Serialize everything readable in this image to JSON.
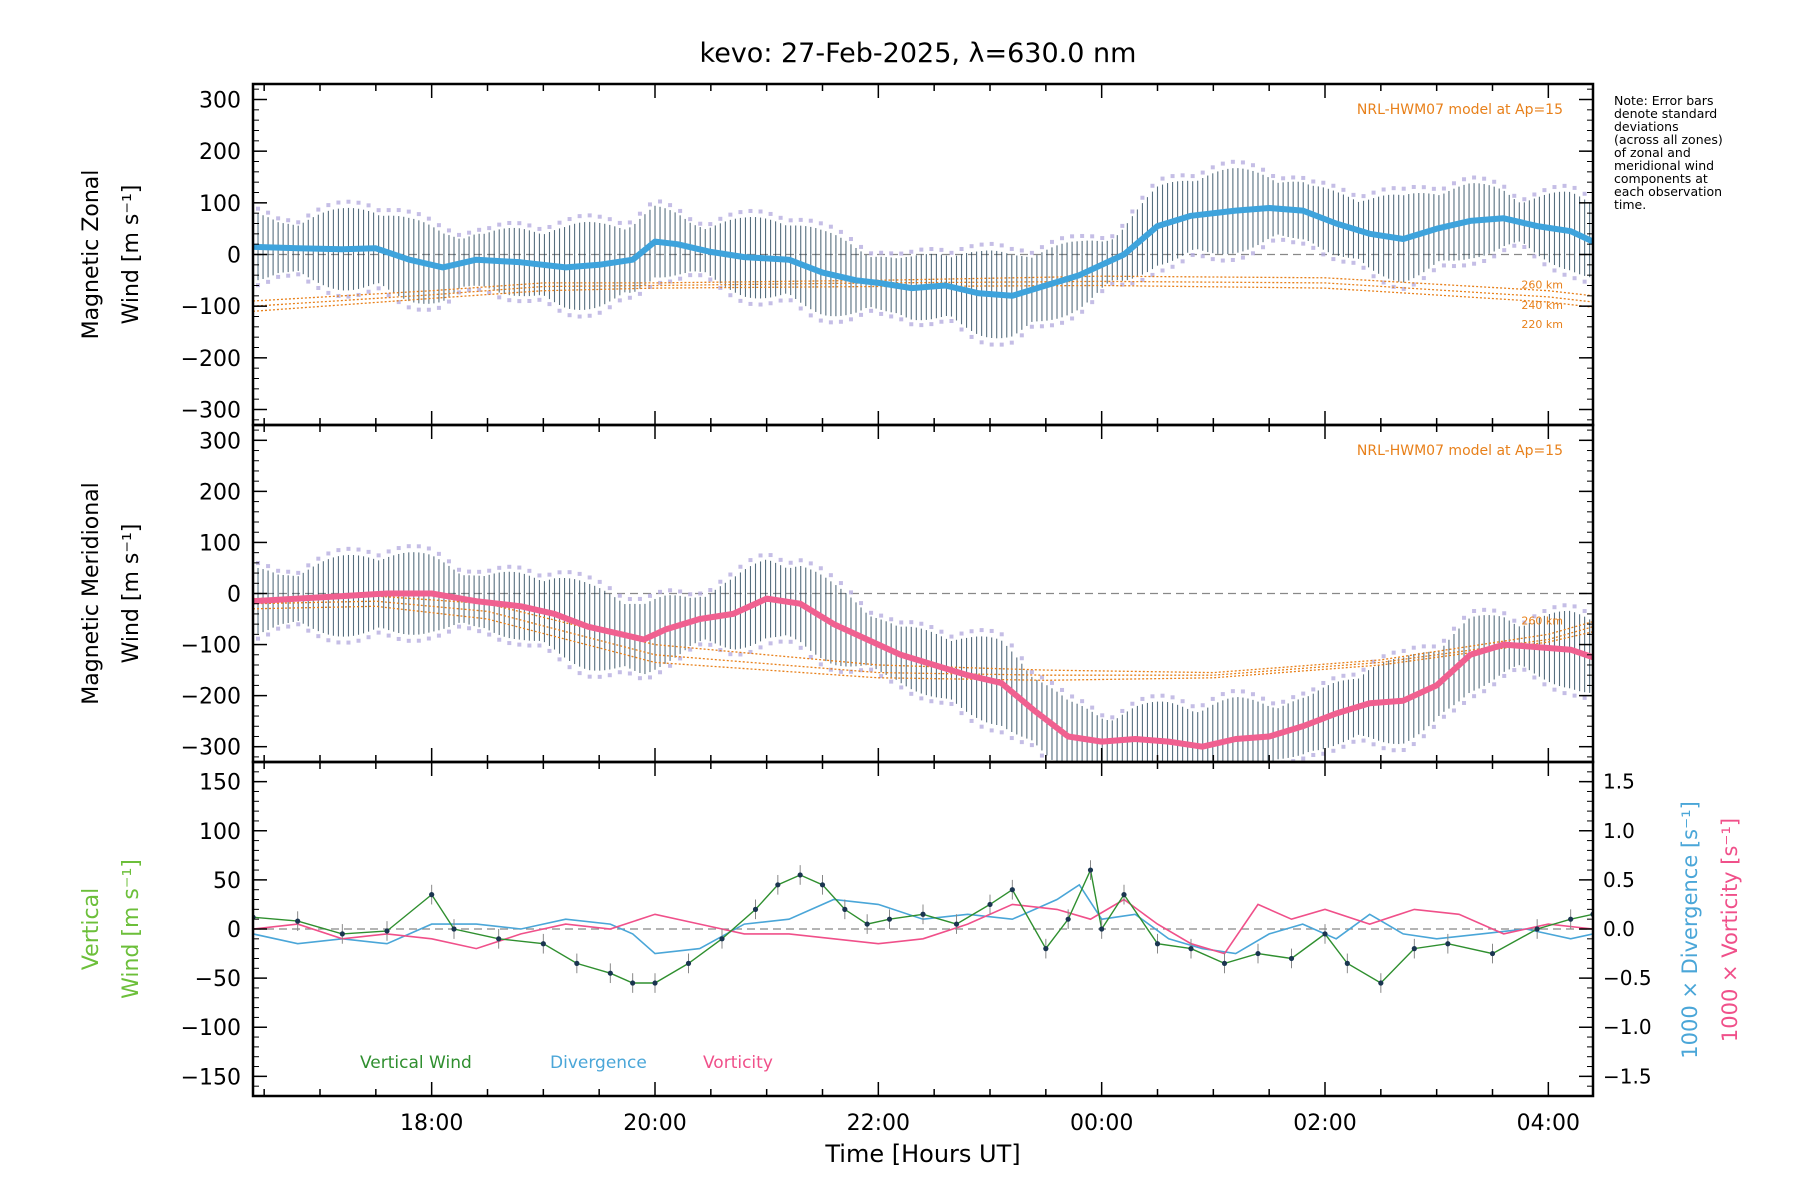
{
  "chart_data": [
    {
      "type": "line",
      "panel": "zonal",
      "title": "kevo: 27-Feb-2025, λ=630.0 nm",
      "ylabel": [
        "Magnetic Zonal",
        "Wind [m s⁻¹]"
      ],
      "ylim": [
        -330,
        330
      ],
      "yticks": [
        -300,
        -200,
        -100,
        0,
        100,
        200,
        300
      ],
      "model_label": "NRL-HWM07 model at Ap=15",
      "model_altitudes": [
        "260 km",
        "240 km",
        "220 km"
      ],
      "series": [
        {
          "name": "Mean zonal wind",
          "color": "#3ea3dc",
          "x": [
            16.4,
            16.8,
            17.2,
            17.5,
            17.8,
            18.1,
            18.4,
            18.8,
            19.2,
            19.5,
            19.8,
            20.0,
            20.2,
            20.5,
            20.8,
            21.2,
            21.5,
            21.8,
            22.0,
            22.3,
            22.6,
            22.9,
            23.2,
            23.5,
            23.8,
            24.2,
            24.5,
            24.8,
            25.2,
            25.5,
            25.8,
            26.1,
            26.4,
            26.7,
            27.0,
            27.3,
            27.6,
            27.9,
            28.2,
            28.4
          ],
          "values": [
            15,
            12,
            10,
            12,
            -10,
            -25,
            -10,
            -15,
            -25,
            -20,
            -10,
            25,
            20,
            5,
            -5,
            -10,
            -35,
            -50,
            -55,
            -65,
            -60,
            -75,
            -80,
            -60,
            -40,
            0,
            55,
            75,
            85,
            90,
            85,
            60,
            40,
            30,
            50,
            65,
            70,
            55,
            45,
            25
          ]
        },
        {
          "name": "NRL-HWM07 260 km",
          "color": "#e8801a",
          "x": [
            16.4,
            18,
            19,
            20,
            22,
            24,
            26,
            28,
            28.4
          ],
          "values": [
            -90,
            -70,
            -55,
            -55,
            -50,
            -42,
            -45,
            -70,
            -80
          ]
        },
        {
          "name": "NRL-HWM07 240 km",
          "color": "#e8801a",
          "x": [
            16.4,
            18,
            19,
            20,
            22,
            24,
            26,
            28,
            28.4
          ],
          "values": [
            -100,
            -78,
            -62,
            -60,
            -55,
            -52,
            -55,
            -82,
            -92
          ]
        },
        {
          "name": "NRL-HWM07 220 km",
          "color": "#e8801a",
          "x": [
            16.4,
            18,
            19,
            20,
            22,
            24,
            26,
            28,
            28.4
          ],
          "values": [
            -110,
            -85,
            -70,
            -65,
            -62,
            -60,
            -65,
            -92,
            -102
          ]
        }
      ]
    },
    {
      "type": "line",
      "panel": "meridional",
      "ylabel": [
        "Magnetic Meridional",
        "Wind [m s⁻¹]"
      ],
      "ylim": [
        -330,
        330
      ],
      "yticks": [
        -300,
        -200,
        -100,
        0,
        100,
        200,
        300
      ],
      "model_label": "NRL-HWM07 model at Ap=15",
      "model_altitudes": [
        "260 km"
      ],
      "series": [
        {
          "name": "Mean meridional wind",
          "color": "#f06090",
          "x": [
            16.4,
            16.8,
            17.2,
            17.6,
            18.0,
            18.4,
            18.8,
            19.1,
            19.4,
            19.7,
            19.9,
            20.1,
            20.4,
            20.7,
            21.0,
            21.3,
            21.6,
            21.9,
            22.2,
            22.5,
            22.8,
            23.1,
            23.4,
            23.7,
            24.0,
            24.3,
            24.6,
            24.9,
            25.2,
            25.5,
            25.8,
            26.1,
            26.4,
            26.7,
            27.0,
            27.3,
            27.6,
            27.9,
            28.2,
            28.4
          ],
          "values": [
            -15,
            -10,
            -5,
            0,
            0,
            -15,
            -25,
            -40,
            -65,
            -80,
            -90,
            -70,
            -50,
            -40,
            -10,
            -20,
            -60,
            -90,
            -120,
            -140,
            -160,
            -175,
            -230,
            -280,
            -290,
            -285,
            -290,
            -300,
            -285,
            -280,
            -260,
            -235,
            -215,
            -210,
            -180,
            -120,
            -100,
            -105,
            -110,
            -125
          ]
        },
        {
          "name": "NRL-HWM07 260 km",
          "color": "#e8801a",
          "x": [
            16.4,
            17.5,
            18.5,
            20,
            22,
            23.5,
            25,
            26.5,
            28,
            28.4
          ],
          "values": [
            -10,
            -5,
            -20,
            -100,
            -140,
            -150,
            -155,
            -130,
            -80,
            -55
          ]
        },
        {
          "name": "NRL-HWM07 240 km",
          "color": "#e8801a",
          "x": [
            16.4,
            17.5,
            18.5,
            20,
            22,
            23.5,
            25,
            26.5,
            28,
            28.4
          ],
          "values": [
            -20,
            -15,
            -35,
            -120,
            -155,
            -160,
            -160,
            -135,
            -90,
            -65
          ]
        },
        {
          "name": "NRL-HWM07 220 km",
          "color": "#e8801a",
          "x": [
            16.4,
            17.5,
            18.5,
            20,
            22,
            23.5,
            25,
            26.5,
            28,
            28.4
          ],
          "values": [
            -30,
            -25,
            -50,
            -135,
            -165,
            -170,
            -165,
            -140,
            -95,
            -75
          ]
        }
      ]
    },
    {
      "type": "line",
      "panel": "vertical",
      "ylabel": [
        "Vertical",
        "Wind [m s⁻¹]"
      ],
      "ylim": [
        -170,
        170
      ],
      "yticks": [
        -150,
        -100,
        -50,
        0,
        50,
        100,
        150
      ],
      "y2ylim": [
        -1.7,
        1.7
      ],
      "y2ticks": [
        -1.5,
        -1.0,
        -0.5,
        0.0,
        0.5,
        1.0,
        1.5
      ],
      "y2tick_labels": [
        "−1.5",
        "−1.0",
        "−0.5",
        "0.0",
        "0.5",
        "1.0",
        "1.5"
      ],
      "y2label_divergence": "1000 × Divergence [s⁻¹]",
      "y2label_vorticity": "1000 × Vorticity [s⁻¹]",
      "legend": [
        "Vertical Wind",
        "Divergence",
        "Vorticity"
      ],
      "series": [
        {
          "name": "Vertical Wind",
          "axis": "left",
          "color": "#2f8f2f",
          "x": [
            16.4,
            16.8,
            17.2,
            17.6,
            18.0,
            18.2,
            18.6,
            19.0,
            19.3,
            19.6,
            19.8,
            20.0,
            20.3,
            20.6,
            20.9,
            21.1,
            21.3,
            21.5,
            21.7,
            21.9,
            22.1,
            22.4,
            22.7,
            23.0,
            23.2,
            23.5,
            23.7,
            23.9,
            24.0,
            24.2,
            24.5,
            24.8,
            25.1,
            25.4,
            25.7,
            26.0,
            26.2,
            26.5,
            26.8,
            27.1,
            27.5,
            27.9,
            28.2,
            28.4
          ],
          "values": [
            12,
            8,
            -5,
            -2,
            35,
            0,
            -10,
            -15,
            -35,
            -45,
            -55,
            -55,
            -35,
            -10,
            20,
            45,
            55,
            45,
            20,
            5,
            10,
            15,
            5,
            25,
            40,
            -20,
            10,
            60,
            0,
            35,
            -15,
            -20,
            -35,
            -25,
            -30,
            -5,
            -35,
            -55,
            -20,
            -15,
            -25,
            0,
            10,
            15
          ]
        },
        {
          "name": "Divergence",
          "axis": "right",
          "color": "#4aa6d8",
          "x": [
            16.4,
            16.8,
            17.2,
            17.6,
            18.0,
            18.4,
            18.8,
            19.2,
            19.6,
            19.8,
            20.0,
            20.4,
            20.8,
            21.2,
            21.6,
            22.0,
            22.4,
            22.8,
            23.2,
            23.6,
            23.8,
            24.0,
            24.3,
            24.6,
            24.9,
            25.2,
            25.5,
            25.8,
            26.1,
            26.4,
            26.7,
            27.0,
            27.4,
            27.8,
            28.2,
            28.4
          ],
          "values": [
            -0.05,
            -0.15,
            -0.1,
            -0.15,
            0.05,
            0.05,
            0.0,
            0.1,
            0.05,
            -0.05,
            -0.25,
            -0.2,
            0.05,
            0.1,
            0.3,
            0.25,
            0.1,
            0.15,
            0.1,
            0.3,
            0.45,
            0.1,
            0.15,
            -0.1,
            -0.2,
            -0.25,
            -0.05,
            0.05,
            -0.1,
            0.15,
            -0.05,
            -0.1,
            -0.05,
            0.0,
            -0.1,
            -0.05
          ]
        },
        {
          "name": "Vorticity",
          "axis": "right",
          "color": "#f0508a",
          "x": [
            16.4,
            16.8,
            17.2,
            17.6,
            18.0,
            18.4,
            18.8,
            19.2,
            19.6,
            20.0,
            20.4,
            20.8,
            21.2,
            21.6,
            22.0,
            22.4,
            22.8,
            23.2,
            23.6,
            23.9,
            24.2,
            24.5,
            24.8,
            25.1,
            25.4,
            25.7,
            26.0,
            26.4,
            26.8,
            27.2,
            27.6,
            28.0,
            28.4
          ],
          "values": [
            0.0,
            0.05,
            -0.1,
            -0.05,
            -0.1,
            -0.2,
            -0.05,
            0.05,
            0.0,
            0.15,
            0.05,
            -0.05,
            -0.05,
            -0.1,
            -0.15,
            -0.1,
            0.05,
            0.25,
            0.2,
            0.1,
            0.3,
            0.05,
            -0.15,
            -0.25,
            0.25,
            0.1,
            0.2,
            0.05,
            0.2,
            0.15,
            -0.05,
            0.05,
            0.0
          ]
        }
      ]
    }
  ],
  "x_axis": {
    "xlabel": "Time [Hours UT]",
    "xlim": [
      16.4,
      28.4
    ],
    "ticks": [
      18,
      20,
      22,
      24,
      26,
      28
    ],
    "tick_labels": [
      "18:00",
      "20:00",
      "22:00",
      "00:00",
      "02:00",
      "04:00"
    ]
  },
  "note_lines": [
    "Note: Error bars",
    "denote standard",
    "deviations",
    "(across all zones)",
    "of zonal and",
    "meridional wind",
    "components at",
    "each observation",
    "time."
  ]
}
